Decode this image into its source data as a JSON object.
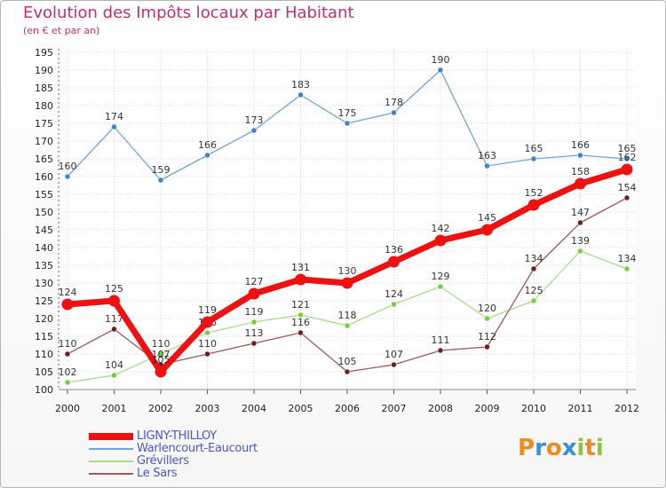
{
  "title": "Evolution des Impôts locaux par Habitant",
  "subtitle": "(en € et par an)",
  "chart_data": {
    "type": "line",
    "title": "Evolution des Impôts locaux par Habitant",
    "ylabel": "(en € et par an)",
    "xlabel": "",
    "x": [
      "2000",
      "2001",
      "2002",
      "2003",
      "2004",
      "2005",
      "2006",
      "2007",
      "2008",
      "2009",
      "2010",
      "2011",
      "2012"
    ],
    "ylim": [
      100,
      195
    ],
    "yticks": [
      100,
      105,
      110,
      115,
      120,
      125,
      130,
      135,
      140,
      145,
      150,
      155,
      160,
      165,
      170,
      175,
      180,
      185,
      190,
      195
    ],
    "grid": true,
    "legend_position": "bottom-left",
    "series": [
      {
        "name": "Warlencourt-Eaucourt",
        "color": "#6fa6d4",
        "marker": "#3f86c6",
        "values": [
          160,
          174,
          159,
          166,
          173,
          183,
          175,
          178,
          190,
          163,
          165,
          166,
          165
        ]
      },
      {
        "name": "Grévillers",
        "color": "#a9dc8a",
        "marker": "#76cd3e",
        "values": [
          102,
          104,
          110,
          116,
          119,
          121,
          118,
          124,
          129,
          120,
          125,
          139,
          134
        ]
      },
      {
        "name": "Le Sars",
        "color": "#9a5a5a",
        "marker": "#6b1f1f",
        "values": [
          110,
          117,
          107,
          110,
          113,
          116,
          105,
          107,
          111,
          112,
          134,
          147,
          154
        ]
      },
      {
        "name": "LIGNY-THILLOY",
        "color": "#ee1111",
        "marker": "#ee1111",
        "values": [
          124,
          125,
          105,
          119,
          127,
          131,
          130,
          136,
          142,
          145,
          152,
          158,
          162
        ]
      }
    ]
  },
  "legend": [
    {
      "label": "LIGNY-THILLOY",
      "color": "#ee1111"
    },
    {
      "label": "Warlencourt-Eaucourt",
      "color": "#6fa6d4"
    },
    {
      "label": "Grévillers",
      "color": "#a9dc8a"
    },
    {
      "label": "Le Sars",
      "color": "#9a5a5a"
    }
  ],
  "logo": {
    "letters": [
      "P",
      "r",
      "o",
      "x",
      "i",
      "t",
      "i"
    ],
    "colors": [
      "#f08a1c",
      "#3a8fd8",
      "#f08a1c",
      "#3a8fd8",
      "#8cc63f",
      "#f08a1c",
      "#8cc63f"
    ]
  }
}
